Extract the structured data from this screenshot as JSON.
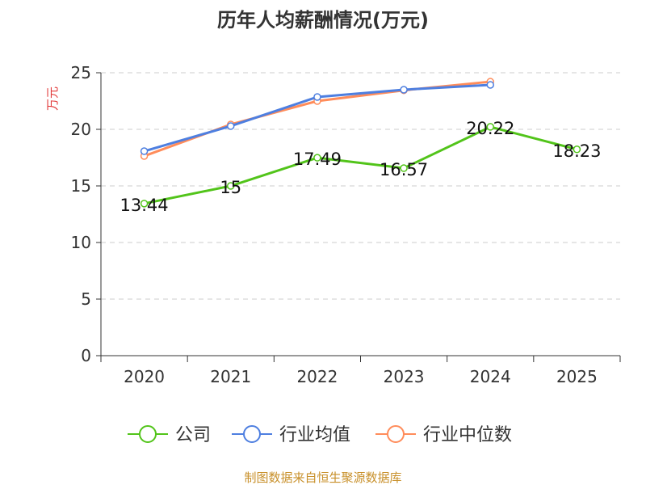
{
  "chart_data": {
    "type": "line",
    "title": "历年人均薪酬情况(万元)",
    "ylabel": "万元",
    "xlabel": "",
    "ylim": [
      0,
      25
    ],
    "yticks": [
      0,
      5,
      10,
      15,
      20,
      25
    ],
    "categories": [
      "2020",
      "2021",
      "2022",
      "2023",
      "2024",
      "2025"
    ],
    "grid": true,
    "legend_position": "bottom",
    "series": [
      {
        "name": "公司",
        "color": "#52c41a",
        "values": [
          13.44,
          15,
          17.49,
          16.57,
          20.22,
          18.23
        ],
        "labels": [
          "13.44",
          "15",
          "17.49",
          "16.57",
          "20.22",
          "18.23"
        ]
      },
      {
        "name": "行业均值",
        "color": "#4e7fe0",
        "values": [
          18.07,
          20.29,
          22.86,
          23.5,
          23.93,
          null
        ]
      },
      {
        "name": "行业中位数",
        "color": "#ff8c5a",
        "values": [
          17.64,
          20.43,
          22.5,
          23.45,
          24.21,
          null
        ]
      }
    ],
    "source": "制图数据来自恒生聚源数据库"
  }
}
